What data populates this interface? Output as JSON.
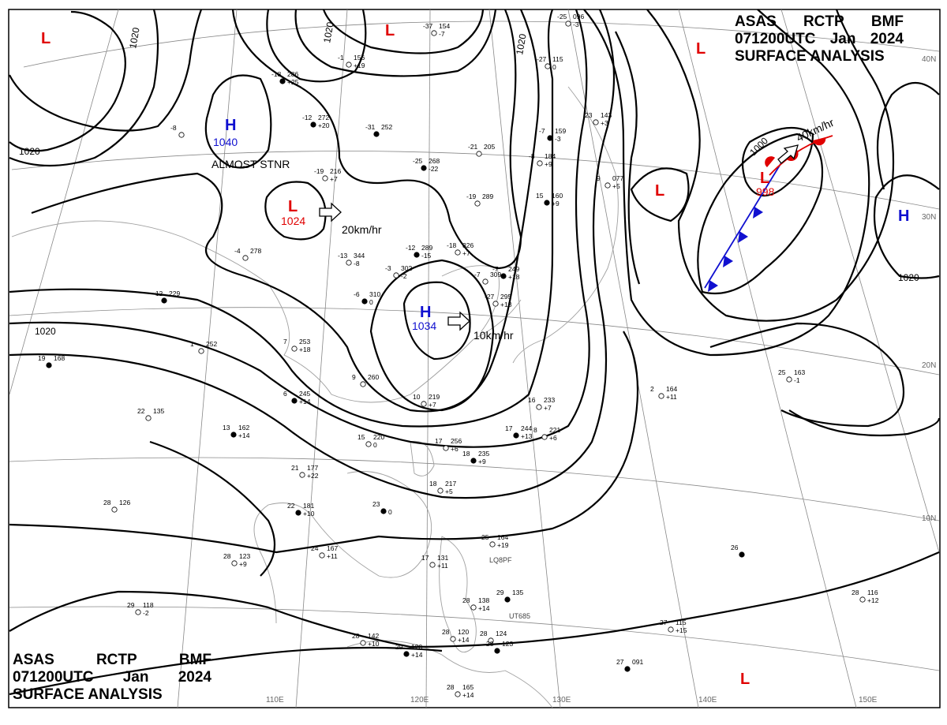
{
  "header": {
    "line1": [
      "ASAS",
      "RCTP",
      "BMF"
    ],
    "line2": [
      "071200UTC",
      "Jan",
      "2024"
    ],
    "line3": "SURFACE ANALYSIS"
  },
  "colors": {
    "high": "#1010d0",
    "low": "#e00000",
    "isobar": "#000000",
    "grid": "#888888",
    "coast": "#a0a0a0"
  },
  "lon_labels": [
    "110E",
    "120E",
    "130E",
    "140E",
    "150E"
  ],
  "lat_labels": [
    "40N",
    "30N",
    "20N",
    "10N"
  ],
  "centers": [
    {
      "kind": "H",
      "value": "1040",
      "note": "ALMOST STNR"
    },
    {
      "kind": "H",
      "value": "1034",
      "note": ""
    },
    {
      "kind": "H",
      "value": "",
      "note": ""
    },
    {
      "kind": "L",
      "value": "1024",
      "note": ""
    },
    {
      "kind": "L",
      "value": "998",
      "note": ""
    },
    {
      "kind": "L",
      "value": "",
      "note": ""
    },
    {
      "kind": "L",
      "value": "",
      "note": ""
    },
    {
      "kind": "L",
      "value": "",
      "note": ""
    },
    {
      "kind": "L",
      "value": "",
      "note": ""
    },
    {
      "kind": "L",
      "value": "",
      "note": ""
    }
  ],
  "motions": [
    "20km/hr",
    "10km/hr",
    "40km/hr"
  ],
  "isobar_labels": [
    "1020",
    "1020",
    "1020",
    "1020",
    "1020",
    "1020",
    "1000"
  ],
  "stations": [
    {
      "t": "-12",
      "p": "272",
      "d": "+20"
    },
    {
      "t": "-1",
      "p": "156",
      "d": "+19"
    },
    {
      "t": "-37",
      "p": "154",
      "d": "-7"
    },
    {
      "t": "-25",
      "p": "268",
      "d": "-22"
    },
    {
      "t": "-21",
      "p": "205",
      "d": ""
    },
    {
      "t": "-19",
      "p": "289",
      "d": ""
    },
    {
      "t": "-12",
      "p": "289",
      "d": "-15"
    },
    {
      "t": "-18",
      "p": "326",
      "d": "+7"
    },
    {
      "t": "-13",
      "p": "344",
      "d": "-8"
    },
    {
      "t": "-6",
      "p": "310",
      "d": "0"
    },
    {
      "t": "-3",
      "p": "302",
      "d": "-2"
    },
    {
      "t": "-4",
      "p": "278",
      "d": ""
    },
    {
      "t": "-12",
      "p": "229",
      "d": ""
    },
    {
      "t": "1",
      "p": "252",
      "d": ""
    },
    {
      "t": "7",
      "p": "253",
      "d": "+18"
    },
    {
      "t": "6",
      "p": "245",
      "d": "+14"
    },
    {
      "t": "9",
      "p": "260",
      "d": ""
    },
    {
      "t": "10",
      "p": "219",
      "d": "+7"
    },
    {
      "t": "13",
      "p": "162",
      "d": "+14"
    },
    {
      "t": "15",
      "p": "220",
      "d": "0"
    },
    {
      "t": "17",
      "p": "256",
      "d": "+6"
    },
    {
      "t": "18",
      "p": "235",
      "d": "+9"
    },
    {
      "t": "18",
      "p": "217",
      "d": "+5"
    },
    {
      "t": "16",
      "p": "233",
      "d": "+7"
    },
    {
      "t": "17",
      "p": "244",
      "d": "+13"
    },
    {
      "t": "8",
      "p": "221",
      "d": "+6"
    },
    {
      "t": "21",
      "p": "177",
      "d": "+22"
    },
    {
      "t": "22",
      "p": "181",
      "d": "+10"
    },
    {
      "t": "24",
      "p": "167",
      "d": "+11"
    },
    {
      "t": "28",
      "p": "123",
      "d": "+9"
    },
    {
      "t": "19",
      "p": "168",
      "d": ""
    },
    {
      "t": "22",
      "p": "135",
      "d": ""
    },
    {
      "t": "28",
      "p": "126",
      "d": ""
    },
    {
      "t": "23",
      "p": "",
      "d": "0"
    },
    {
      "t": "25",
      "p": "164",
      "d": "+19"
    },
    {
      "t": "17",
      "p": "131",
      "d": "+11"
    },
    {
      "t": "29",
      "p": "135",
      "d": ""
    },
    {
      "t": "28",
      "p": "138",
      "d": "+14"
    },
    {
      "t": "28",
      "p": "120",
      "d": "+14"
    },
    {
      "t": "29",
      "p": "120",
      "d": "+14"
    },
    {
      "t": "28",
      "p": "142",
      "d": "+10"
    },
    {
      "t": "28",
      "p": "124",
      "d": ""
    },
    {
      "t": "28",
      "p": "123",
      "d": ""
    },
    {
      "t": "28",
      "p": "165",
      "d": "+14"
    },
    {
      "t": "29",
      "p": "118",
      "d": "-2"
    },
    {
      "t": "27",
      "p": "091",
      "d": ""
    },
    {
      "t": "27",
      "p": "115",
      "d": "+15"
    },
    {
      "t": "28",
      "p": "116",
      "d": "+12"
    },
    {
      "t": "26",
      "p": "",
      "d": ""
    },
    {
      "t": "25",
      "p": "163",
      "d": "-1"
    },
    {
      "t": "2",
      "p": "164",
      "d": "+11"
    },
    {
      "t": "15",
      "p": "160",
      "d": "+9"
    },
    {
      "t": "23",
      "p": "143",
      "d": "+3"
    },
    {
      "t": "9",
      "p": "077",
      "d": "+5"
    },
    {
      "t": "-7",
      "p": "159",
      "d": "-3"
    },
    {
      "t": "-27",
      "p": "115",
      "d": "0"
    },
    {
      "t": "-25",
      "p": "096",
      "d": "-3"
    },
    {
      "t": "-18",
      "p": "286",
      "d": "+25"
    },
    {
      "t": "-8",
      "p": "",
      "d": ""
    },
    {
      "t": "-19",
      "p": "216",
      "d": "+7"
    },
    {
      "t": "-31",
      "p": "252",
      "d": ""
    },
    {
      "t": "-27",
      "p": "295",
      "d": "+13"
    },
    {
      "t": "-7",
      "p": "309",
      "d": ""
    },
    {
      "t": "-7",
      "p": "249",
      "d": "+18"
    },
    {
      "t": "-8",
      "p": "184",
      "d": "+9"
    }
  ],
  "ship_ids": [
    "LQ8PF",
    "UT685"
  ]
}
